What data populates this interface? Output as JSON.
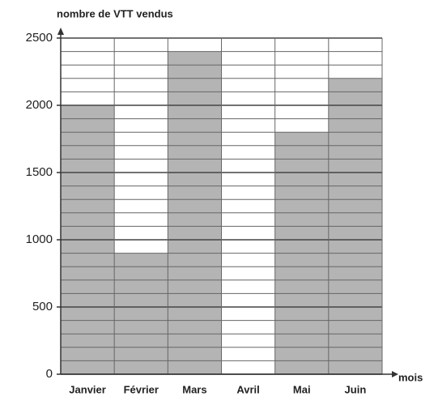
{
  "chart_data": {
    "type": "bar",
    "y_label": "nombre de VTT vendus",
    "x_label": "mois",
    "categories": [
      "Janvier",
      "Février",
      "Mars",
      "Avril",
      "Mai",
      "Juin"
    ],
    "values": [
      2000,
      900,
      2400,
      null,
      1800,
      2200
    ],
    "color": "#b4b4b4",
    "ylim": [
      0,
      2500
    ],
    "yticks": [
      0,
      500,
      1000,
      1500,
      2000,
      2500
    ],
    "minor_yticks": [
      100,
      200,
      300,
      400,
      600,
      700,
      800,
      900,
      1100,
      1200,
      1300,
      1400,
      1600,
      1700,
      1800,
      1900,
      2100,
      2200,
      2300,
      2400
    ],
    "grid": true
  }
}
